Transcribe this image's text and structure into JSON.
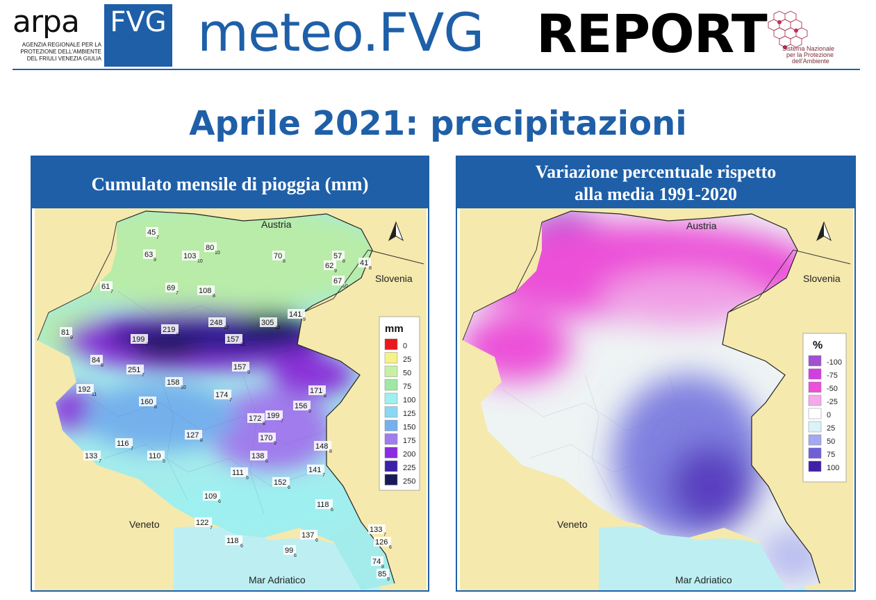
{
  "header": {
    "arpa": "ARPA",
    "fvg": "FVG",
    "agency_lines": [
      "AGENZIA REGIONALE PER LA",
      "PROTEZIONE DELL'AMBIENTE",
      "DEL FRIULI VENEZIA GIULIA"
    ],
    "meteo": "meteo.FVG",
    "report": "REPORT",
    "snpa_lines": [
      "Sistema Nazionale",
      "per la Protezione",
      "dell'Ambiente"
    ]
  },
  "title": "Aprile 2021: precipitazioni",
  "left_panel": {
    "title": "Cumulato mensile di pioggia (mm)",
    "labels": {
      "austria": "Austria",
      "slovenia": "Slovenia",
      "veneto": "Veneto",
      "sea": "Mar Adriatico"
    },
    "legend_title": "mm",
    "legend": [
      {
        "label": "0",
        "color": "#e8181c"
      },
      {
        "label": "25",
        "color": "#f6f28a"
      },
      {
        "label": "50",
        "color": "#c8f0a4"
      },
      {
        "label": "75",
        "color": "#9ee8a4"
      },
      {
        "label": "100",
        "color": "#9ef0f0"
      },
      {
        "label": "125",
        "color": "#8ad8f4"
      },
      {
        "label": "150",
        "color": "#74b0ec"
      },
      {
        "label": "175",
        "color": "#a07cec"
      },
      {
        "label": "200",
        "color": "#8a2ce0"
      },
      {
        "label": "225",
        "color": "#3a22a8"
      },
      {
        "label": "250",
        "color": "#1a1a5a"
      }
    ],
    "stations": [
      {
        "v": "45",
        "s": "7"
      },
      {
        "v": "80",
        "s": "10"
      },
      {
        "v": "63",
        "s": "9"
      },
      {
        "v": "103",
        "s": "10"
      },
      {
        "v": "70",
        "s": "8"
      },
      {
        "v": "57",
        "s": "8"
      },
      {
        "v": "62",
        "s": "9"
      },
      {
        "v": "41",
        "s": "8"
      },
      {
        "v": "67",
        "s": "10"
      },
      {
        "v": "61",
        "s": "7"
      },
      {
        "v": "69",
        "s": "7"
      },
      {
        "v": "108",
        "s": "8"
      },
      {
        "v": "141",
        "s": "9"
      },
      {
        "v": "248",
        "s": "12"
      },
      {
        "v": "305",
        "s": "12"
      },
      {
        "v": "219",
        "s": "9"
      },
      {
        "v": "81",
        "s": "9"
      },
      {
        "v": "199",
        "s": "7"
      },
      {
        "v": "157",
        "s": "11"
      },
      {
        "v": "84",
        "s": "8"
      },
      {
        "v": "251",
        "s": "7"
      },
      {
        "v": "157",
        "s": "9"
      },
      {
        "v": "158",
        "s": "10"
      },
      {
        "v": "192",
        "s": "11"
      },
      {
        "v": "174",
        "s": "7"
      },
      {
        "v": "171",
        "s": "8"
      },
      {
        "v": "160",
        "s": "8"
      },
      {
        "v": "156",
        "s": "9"
      },
      {
        "v": "172",
        "s": "8"
      },
      {
        "v": "199",
        "s": "7"
      },
      {
        "v": "116",
        "s": "7"
      },
      {
        "v": "127",
        "s": "8"
      },
      {
        "v": "170",
        "s": "9"
      },
      {
        "v": "148",
        "s": "8"
      },
      {
        "v": "133",
        "s": "7"
      },
      {
        "v": "110",
        "s": "5"
      },
      {
        "v": "138",
        "s": "6"
      },
      {
        "v": "141",
        "s": "7"
      },
      {
        "v": "111",
        "s": "5"
      },
      {
        "v": "152",
        "s": "6"
      },
      {
        "v": "109",
        "s": "6"
      },
      {
        "v": "118",
        "s": "6"
      },
      {
        "v": "122",
        "s": "7"
      },
      {
        "v": "133",
        "s": "7"
      },
      {
        "v": "137",
        "s": "6"
      },
      {
        "v": "126",
        "s": "6"
      },
      {
        "v": "118",
        "s": "6"
      },
      {
        "v": "99",
        "s": "6"
      },
      {
        "v": "74",
        "s": "8"
      },
      {
        "v": "85",
        "s": "9"
      }
    ]
  },
  "right_panel": {
    "title_line1": "Variazione percentuale rispetto",
    "title_line2": "alla media 1991-2020",
    "labels": {
      "austria": "Austria",
      "slovenia": "Slovenia",
      "veneto": "Veneto",
      "sea": "Mar Adriatico"
    },
    "legend_title": "%",
    "legend": [
      {
        "label": "-100",
        "color": "#a050d0"
      },
      {
        "label": "-75",
        "color": "#d040e0"
      },
      {
        "label": "-50",
        "color": "#ec50d8"
      },
      {
        "label": "-25",
        "color": "#f6a8ec"
      },
      {
        "label": "0",
        "color": "#ffffff"
      },
      {
        "label": "25",
        "color": "#dcf2f8"
      },
      {
        "label": "50",
        "color": "#a4a8f0"
      },
      {
        "label": "75",
        "color": "#7060d8"
      },
      {
        "label": "100",
        "color": "#4020a8"
      }
    ]
  }
}
